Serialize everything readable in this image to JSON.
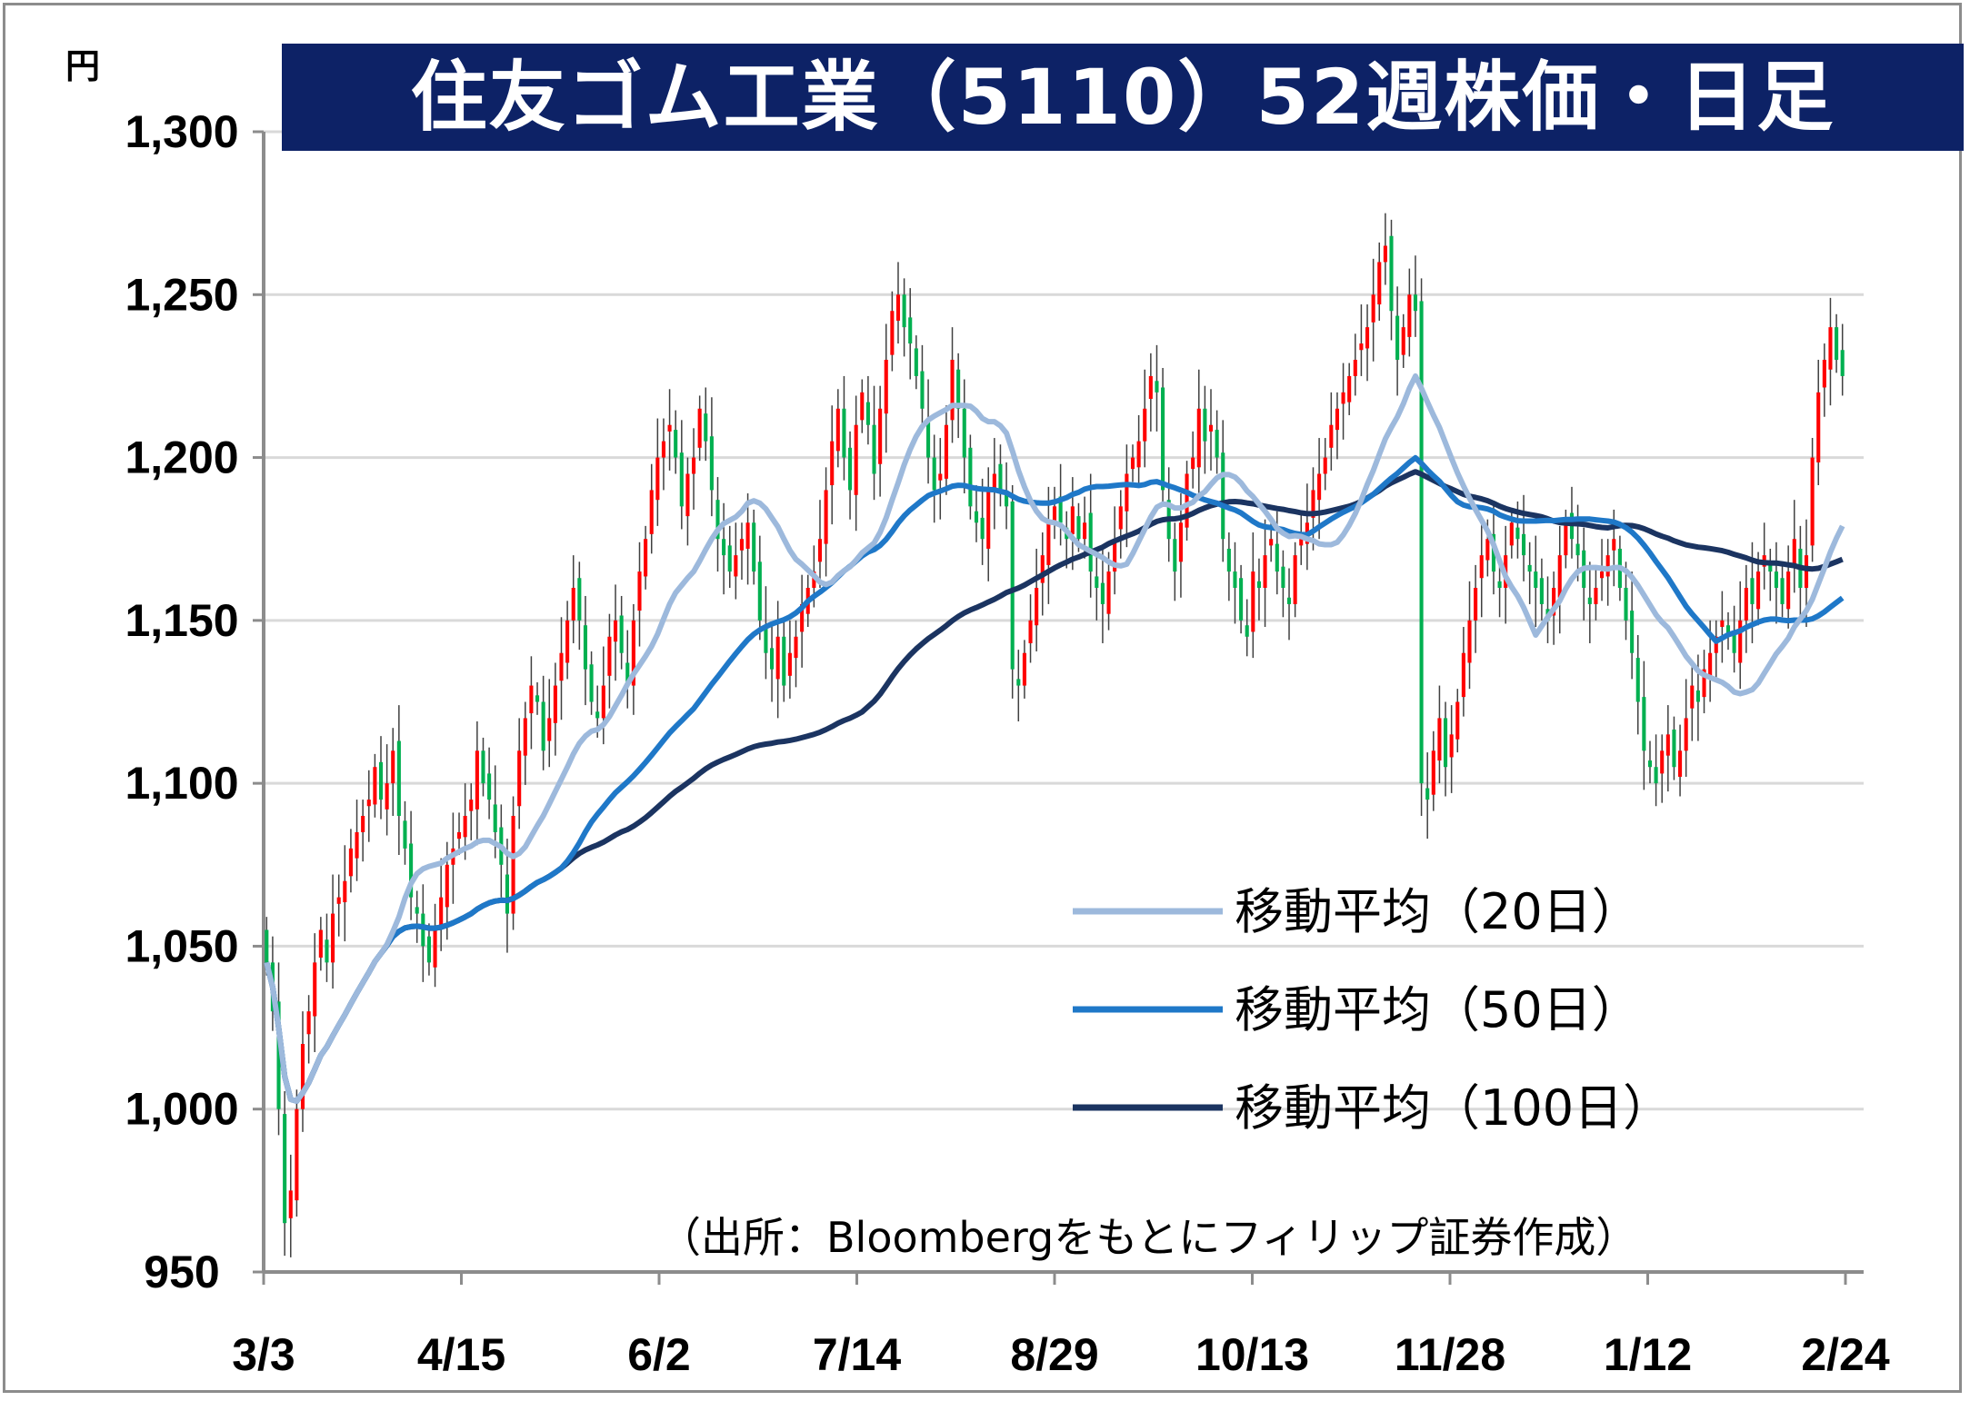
{
  "title": "住友ゴム工業（5110）52週株価・日足",
  "source": "（出所：Bloombergをもとにフィリップ証券作成）",
  "colors": {
    "title_bg": "#0d2266",
    "up_candle": "#ff0000",
    "down_candle": "#00b050",
    "ma20": "#9db9dc",
    "ma50": "#1f78c8",
    "ma100": "#1b3461",
    "grid": "#d9d9d9"
  },
  "chart_data": {
    "type": "candlestick",
    "y_unit": "円",
    "ylim": [
      950,
      1300
    ],
    "y_ticks": [
      "1,300",
      "1,250",
      "1,200",
      "1,150",
      "1,100",
      "1,050",
      "1,000",
      "950"
    ],
    "x_ticks": [
      "3/3",
      "4/15",
      "6/2",
      "7/14",
      "8/29",
      "10/13",
      "11/28",
      "1/12",
      "2/24"
    ],
    "grid": "horizontal",
    "legend_position": "bottom-right",
    "legend": [
      "移動平均（20日）",
      "移動平均（50日）",
      "移動平均（100日）"
    ],
    "closes": [
      1045,
      1030,
      1000,
      965,
      975,
      1000,
      1020,
      1030,
      1045,
      1055,
      1045,
      1060,
      1065,
      1070,
      1080,
      1085,
      1090,
      1095,
      1105,
      1095,
      1100,
      1110,
      1090,
      1080,
      1065,
      1060,
      1050,
      1045,
      1055,
      1065,
      1075,
      1080,
      1085,
      1090,
      1095,
      1110,
      1100,
      1095,
      1085,
      1075,
      1060,
      1090,
      1110,
      1120,
      1130,
      1125,
      1110,
      1120,
      1130,
      1140,
      1150,
      1160,
      1150,
      1135,
      1125,
      1120,
      1130,
      1145,
      1150,
      1140,
      1130,
      1150,
      1165,
      1175,
      1190,
      1200,
      1205,
      1210,
      1200,
      1185,
      1195,
      1200,
      1215,
      1205,
      1190,
      1175,
      1170,
      1165,
      1170,
      1175,
      1180,
      1165,
      1150,
      1140,
      1135,
      1145,
      1130,
      1140,
      1145,
      1155,
      1160,
      1165,
      1175,
      1190,
      1205,
      1215,
      1200,
      1190,
      1210,
      1220,
      1210,
      1195,
      1215,
      1230,
      1245,
      1250,
      1240,
      1235,
      1225,
      1215,
      1200,
      1190,
      1195,
      1210,
      1230,
      1215,
      1200,
      1185,
      1180,
      1175,
      1190,
      1195,
      1190,
      1185,
      1135,
      1130,
      1140,
      1150,
      1160,
      1170,
      1180,
      1185,
      1180,
      1175,
      1185,
      1175,
      1180,
      1165,
      1160,
      1155,
      1165,
      1175,
      1185,
      1195,
      1200,
      1205,
      1215,
      1225,
      1220,
      1190,
      1175,
      1165,
      1180,
      1195,
      1200,
      1215,
      1205,
      1210,
      1200,
      1175,
      1165,
      1160,
      1150,
      1145,
      1165,
      1160,
      1170,
      1175,
      1165,
      1160,
      1155,
      1170,
      1175,
      1180,
      1190,
      1195,
      1200,
      1210,
      1215,
      1220,
      1225,
      1230,
      1235,
      1240,
      1250,
      1260,
      1265,
      1245,
      1230,
      1240,
      1250,
      1245,
      1100,
      1095,
      1110,
      1120,
      1105,
      1115,
      1125,
      1140,
      1150,
      1160,
      1170,
      1175,
      1165,
      1160,
      1170,
      1180,
      1175,
      1170,
      1165,
      1160,
      1155,
      1150,
      1160,
      1170,
      1180,
      1175,
      1170,
      1160,
      1155,
      1160,
      1165,
      1170,
      1175,
      1160,
      1150,
      1140,
      1125,
      1110,
      1105,
      1100,
      1110,
      1115,
      1105,
      1110,
      1120,
      1130,
      1125,
      1135,
      1140,
      1145,
      1150,
      1145,
      1140,
      1150,
      1160,
      1155,
      1165,
      1170,
      1165,
      1160,
      1155,
      1165,
      1175,
      1160,
      1170,
      1200,
      1220,
      1230,
      1240,
      1230,
      1225
    ]
  }
}
